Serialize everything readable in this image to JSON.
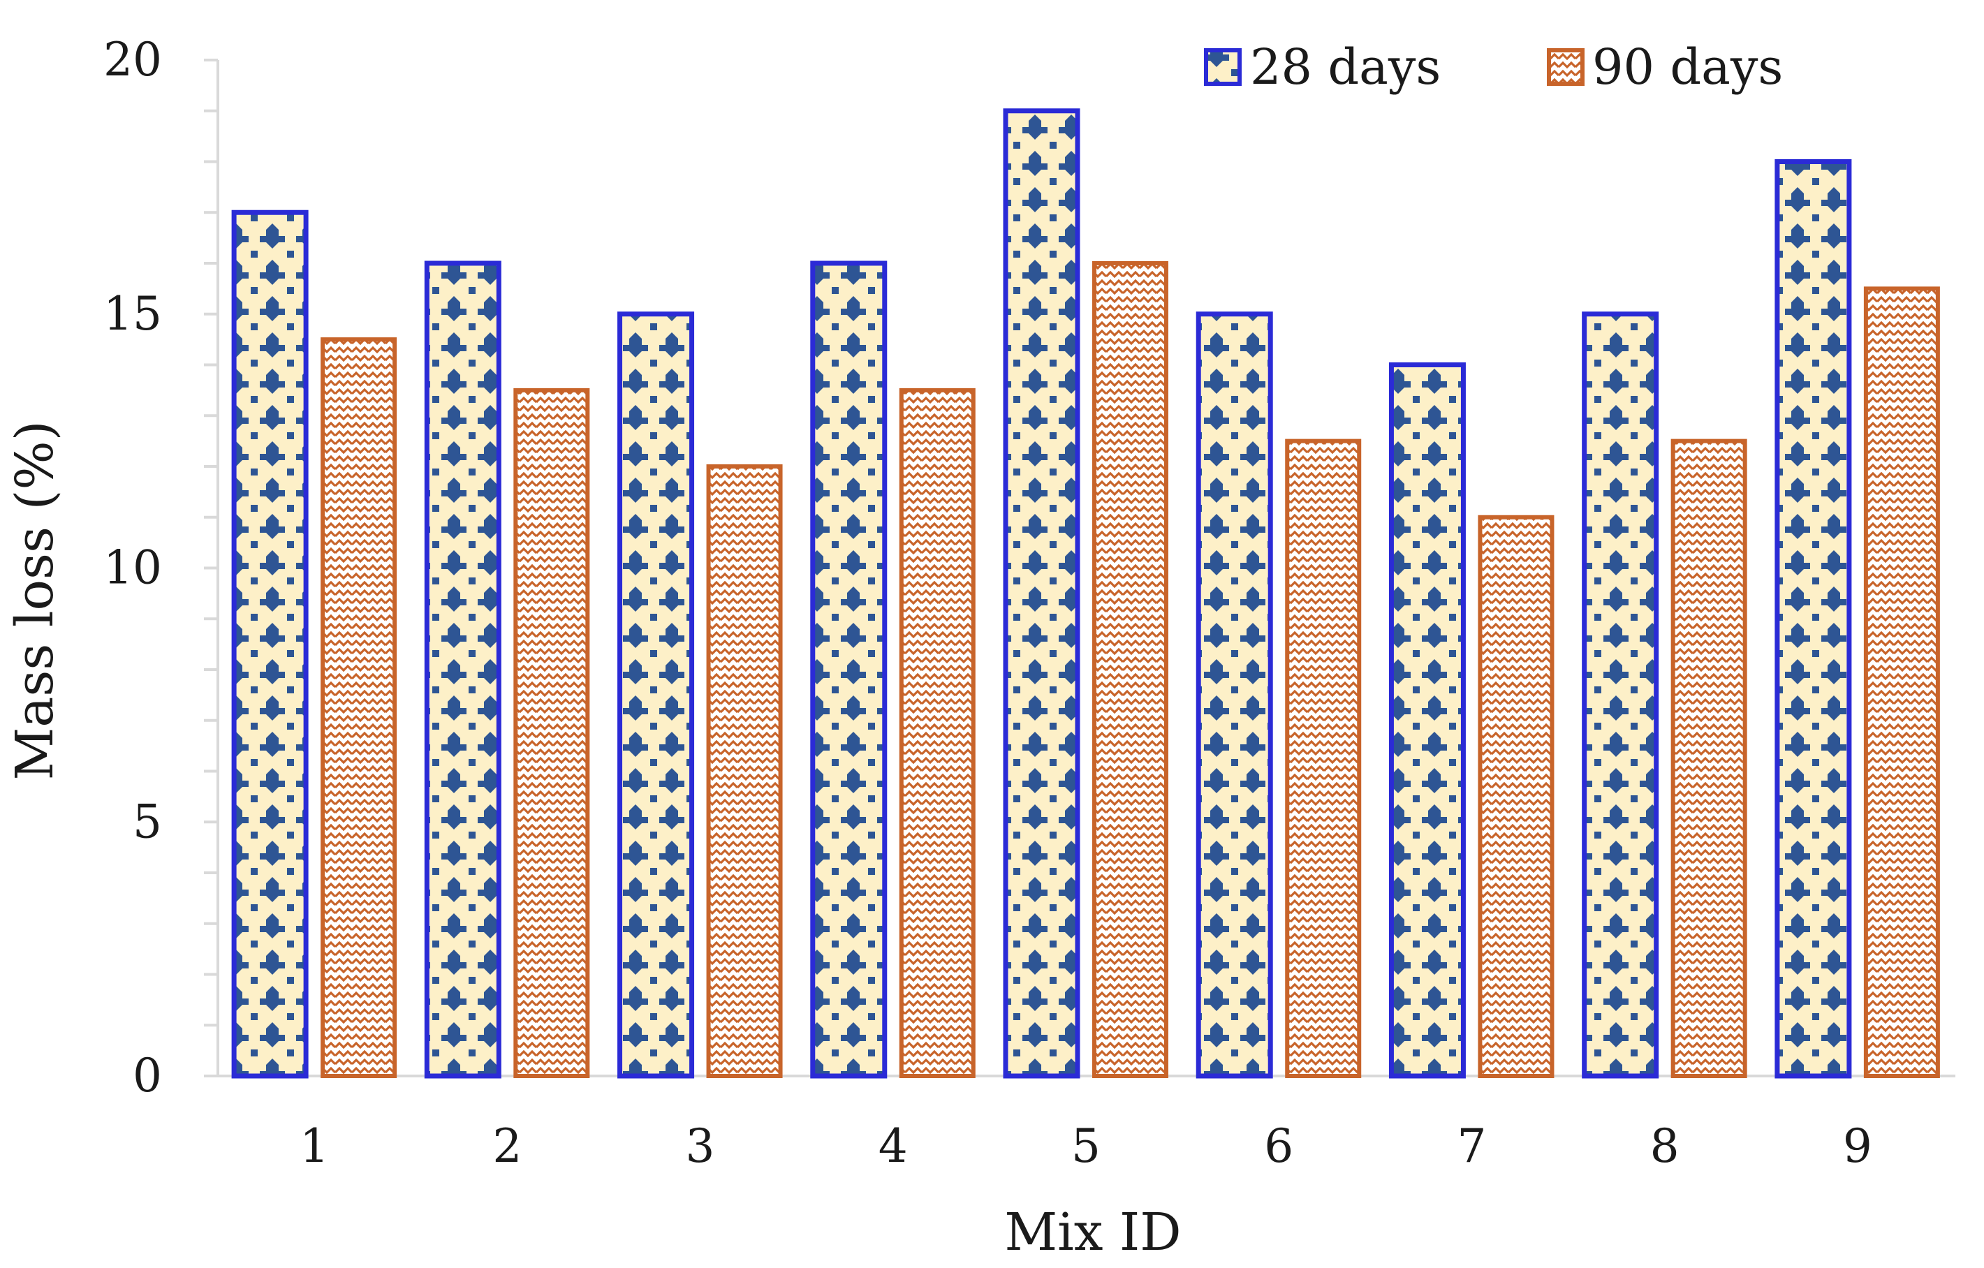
{
  "chart_data": {
    "type": "bar",
    "title": "",
    "xlabel": "Mix ID",
    "ylabel": "Mass loss (%)",
    "categories": [
      "1",
      "2",
      "3",
      "4",
      "5",
      "6",
      "7",
      "8",
      "9"
    ],
    "series": [
      {
        "name": "28 days",
        "values": [
          17,
          16,
          15,
          16,
          19,
          15,
          14,
          15,
          18
        ]
      },
      {
        "name": "90 days",
        "values": [
          14.5,
          13.5,
          12,
          13.5,
          16,
          12.5,
          11,
          12.5,
          15.5
        ]
      }
    ],
    "ylim": [
      0,
      20
    ],
    "yticks": [
      "0",
      "5",
      "10",
      "15",
      "20"
    ],
    "grid": false,
    "legend_position": "top-right",
    "colors": {
      "series1_border": "#2b2bd6",
      "series1_fill": "#fdf0c8",
      "series1_pattern": "#2e5594",
      "series2_border": "#c8642a",
      "series2_fill": "#ffffff",
      "series2_pattern": "#c8642a",
      "axis": "#d9d9d9"
    }
  }
}
